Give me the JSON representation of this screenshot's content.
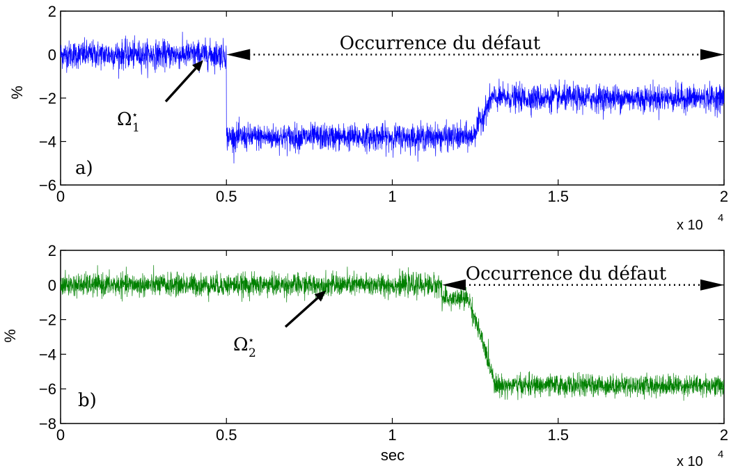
{
  "chart_data": [
    {
      "type": "line",
      "panel_label": "a)",
      "ylabel": "%",
      "xlabel": "",
      "xlim": [
        0,
        20000
      ],
      "ylim": [
        -6,
        2
      ],
      "xticks": [
        0,
        5000,
        10000,
        15000,
        20000
      ],
      "xtick_labels": [
        "0",
        "0.5",
        "1",
        "1.5",
        "2"
      ],
      "yticks": [
        2,
        0,
        -2,
        -4,
        -6
      ],
      "ytick_labels": [
        "2",
        "0",
        "−2",
        "−4",
        "−6"
      ],
      "x_multiplier": "x 10",
      "x_multiplier_exp": "4",
      "grid": false,
      "series": [
        {
          "color": "#0000ff",
          "segments": [
            {
              "x_start": 0,
              "x_end": 5000,
              "level": 0.0,
              "noise": 0.32
            },
            {
              "x_start": 5000,
              "x_end": 12400,
              "level": -3.8,
              "noise": 0.3
            },
            {
              "x_start": 12400,
              "x_end": 13000,
              "level_from": -3.8,
              "level_to": -2.0,
              "noise": 0.3
            },
            {
              "x_start": 13000,
              "x_end": 20000,
              "level": -2.0,
              "noise": 0.3
            }
          ]
        }
      ],
      "annotation": {
        "text": "Occurrence du défaut",
        "arrow_x_start": 5000,
        "arrow_x_end": 20000,
        "arrow_y": 0,
        "symbol_base": "Ω",
        "symbol_sub": "1",
        "symbol_sup": "⋆",
        "pointer_to_x": 4300,
        "pointer_to_y": 0
      }
    },
    {
      "type": "line",
      "panel_label": "b)",
      "ylabel": "%",
      "xlabel": "sec",
      "xlim": [
        0,
        20000
      ],
      "ylim": [
        -8,
        2
      ],
      "xticks": [
        0,
        5000,
        10000,
        15000,
        20000
      ],
      "xtick_labels": [
        "0",
        "0.5",
        "1",
        "1.5",
        "2"
      ],
      "yticks": [
        2,
        0,
        -2,
        -4,
        -6,
        -8
      ],
      "ytick_labels": [
        "2",
        "0",
        "−2",
        "−4",
        "−6",
        "−8"
      ],
      "x_multiplier": "x 10",
      "x_multiplier_exp": "4",
      "grid": false,
      "series": [
        {
          "color": "#008000",
          "segments": [
            {
              "x_start": 0,
              "x_end": 11500,
              "level": 0.0,
              "noise": 0.32
            },
            {
              "x_start": 11500,
              "x_end": 12300,
              "level": -0.8,
              "noise": 0.3
            },
            {
              "x_start": 12300,
              "x_end": 13100,
              "level_from": -0.8,
              "level_to": -5.6,
              "noise": 0.3
            },
            {
              "x_start": 13100,
              "x_end": 20000,
              "level": -5.8,
              "noise": 0.3
            }
          ]
        }
      ],
      "annotation": {
        "text": "Occurrence du défaut",
        "arrow_x_start": 11500,
        "arrow_x_end": 20000,
        "arrow_y": 0,
        "symbol_base": "Ω",
        "symbol_sub": "2",
        "symbol_sup": "⋆",
        "pointer_to_x": 8000,
        "pointer_to_y": 0
      }
    }
  ]
}
